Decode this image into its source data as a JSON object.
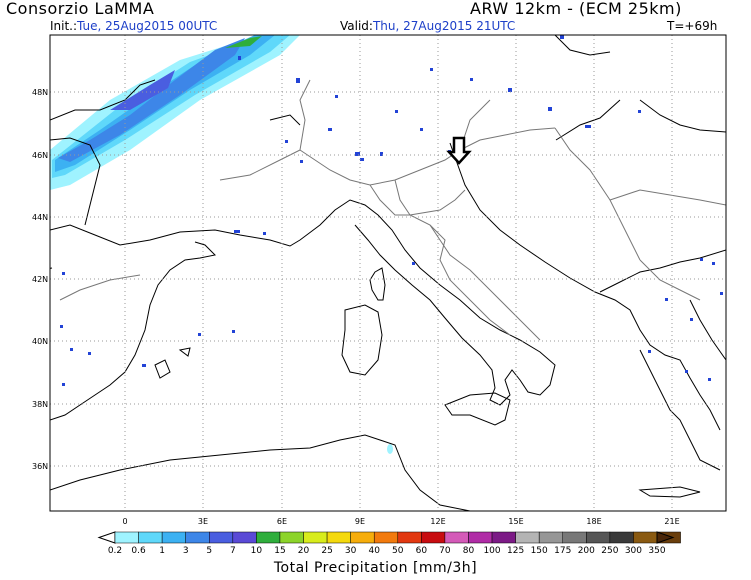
{
  "header": {
    "org": "Consorzio LaMMA",
    "model": "ARW 12km - (ECM 25km)",
    "init_label": "Init.:",
    "init_value": "Tue, 25Aug2015 00UTC",
    "valid_label": "Valid:",
    "valid_value": "Thu, 27Aug2015 21UTC",
    "lead": "T=+69h"
  },
  "map": {
    "lat_labels": [
      "48N",
      "46N",
      "44N",
      "42N",
      "40N",
      "38N",
      "36N"
    ],
    "lon_labels": [
      "0",
      "3E",
      "6E",
      "9E",
      "12E",
      "15E",
      "18E",
      "21E"
    ],
    "marker": "down-arrow-icon"
  },
  "legend": {
    "title": "Total Precipitation [mm/3h]",
    "thresholds": [
      "0.2",
      "0.6",
      "1",
      "3",
      "5",
      "7",
      "10",
      "15",
      "20",
      "25",
      "30",
      "40",
      "50",
      "60",
      "70",
      "80",
      "100",
      "125",
      "150",
      "175",
      "200",
      "250",
      "300",
      "350"
    ],
    "colors": [
      "#9ff3ff",
      "#5fd8fa",
      "#3cb1f2",
      "#3d86e8",
      "#4a5ee0",
      "#5a4ad6",
      "#2fae3c",
      "#8cd42a",
      "#d8ec1c",
      "#f4d90d",
      "#f6ad0b",
      "#f27a0d",
      "#e23810",
      "#c80c10",
      "#d45ab8",
      "#b02ca6",
      "#7c1a86",
      "#b4b4b4",
      "#969696",
      "#787878",
      "#565656",
      "#3a3a3a",
      "#8a5a12",
      "#6a3e0c",
      "#4a2608"
    ]
  }
}
